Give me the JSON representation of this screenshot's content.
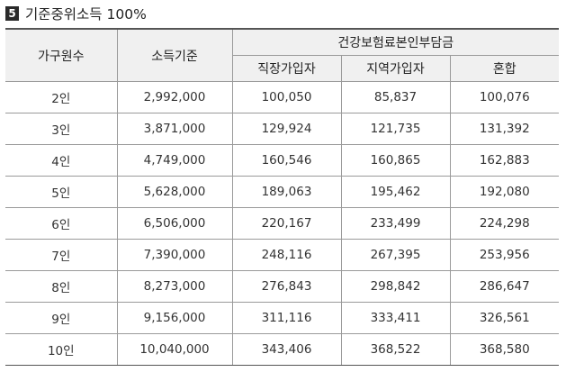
{
  "section": {
    "number": "5",
    "title": "기준중위소득  100%"
  },
  "table": {
    "headers": {
      "household": "가구원수",
      "income": "소득기준",
      "premium_group": "건강보험료본인부담금",
      "employee": "직장가입자",
      "regional": "지역가입자",
      "mixed": "혼합"
    },
    "rows": [
      {
        "household": "2인",
        "income": "2,992,000",
        "employee": "100,050",
        "regional": "85,837",
        "mixed": "100,076"
      },
      {
        "household": "3인",
        "income": "3,871,000",
        "employee": "129,924",
        "regional": "121,735",
        "mixed": "131,392"
      },
      {
        "household": "4인",
        "income": "4,749,000",
        "employee": "160,546",
        "regional": "160,865",
        "mixed": "162,883"
      },
      {
        "household": "5인",
        "income": "5,628,000",
        "employee": "189,063",
        "regional": "195,462",
        "mixed": "192,080"
      },
      {
        "household": "6인",
        "income": "6,506,000",
        "employee": "220,167",
        "regional": "233,499",
        "mixed": "224,298"
      },
      {
        "household": "7인",
        "income": "7,390,000",
        "employee": "248,116",
        "regional": "267,395",
        "mixed": "253,956"
      },
      {
        "household": "8인",
        "income": "8,273,000",
        "employee": "276,843",
        "regional": "298,842",
        "mixed": "286,647"
      },
      {
        "household": "9인",
        "income": "9,156,000",
        "employee": "311,116",
        "regional": "333,411",
        "mixed": "326,561"
      },
      {
        "household": "10인",
        "income": "10,040,000",
        "employee": "343,406",
        "regional": "368,522",
        "mixed": "368,580"
      }
    ]
  }
}
